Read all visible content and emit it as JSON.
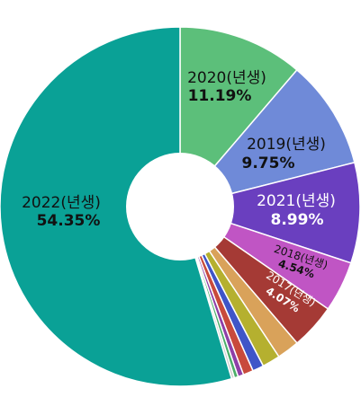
{
  "chart_data": {
    "type": "pie",
    "title": "",
    "donut": true,
    "start": "top",
    "direction": "clockwise",
    "slices": [
      {
        "label": "2020(년생)",
        "value_label": "11.19%",
        "value": 11.19,
        "color": "#5cbf7a"
      },
      {
        "label": "2019(년생)",
        "value_label": "9.75%",
        "value": 9.75,
        "color": "#6f8ad8"
      },
      {
        "label": "2021(년생)",
        "value_label": "8.99%",
        "value": 8.99,
        "color": "#6a3fbf"
      },
      {
        "label": "2018(년생)",
        "value_label": "4.54%",
        "value": 4.54,
        "color": "#c055c4"
      },
      {
        "label": "2017(년생)",
        "value_label": "4.07%",
        "value": 4.07,
        "color": "#a53a35"
      },
      {
        "label": "",
        "value_label": "",
        "value": 2.0,
        "color": "#d9a25a"
      },
      {
        "label": "",
        "value_label": "",
        "value": 1.6,
        "color": "#b5b02f"
      },
      {
        "label": "",
        "value_label": "",
        "value": 1.0,
        "color": "#3f55c8"
      },
      {
        "label": "",
        "value_label": "",
        "value": 0.9,
        "color": "#c84a3c"
      },
      {
        "label": "",
        "value_label": "",
        "value": 0.5,
        "color": "#8e3fa8"
      },
      {
        "label": "",
        "value_label": "",
        "value": 0.35,
        "color": "#4cae6a"
      },
      {
        "label": "",
        "value_label": "",
        "value": 0.25,
        "color": "#cfcfcf"
      },
      {
        "label": "2022(년생)",
        "value_label": "54.35%",
        "value": 54.35,
        "color": "#0aa196"
      }
    ]
  }
}
